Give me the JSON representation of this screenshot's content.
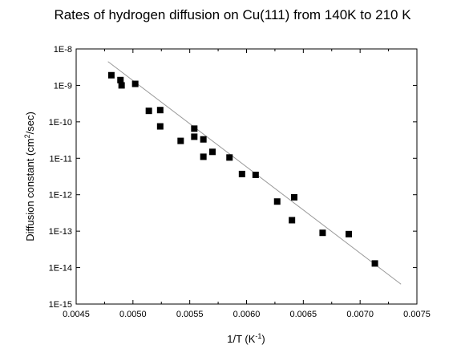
{
  "chart_data": {
    "type": "scatter",
    "title": "Rates of hydrogen diffusion on Cu(111) from 140K to 210 K",
    "xlabel": {
      "main": "1/T  (K",
      "sup": "-1",
      "end": ")"
    },
    "ylabel": {
      "main": "Diffusion constant  (cm",
      "sup": "2",
      "end": "/sec)"
    },
    "xlim": [
      0.0045,
      0.0075
    ],
    "ylim_log10": [
      -15,
      -8
    ],
    "yscale": "log",
    "x_ticks": [
      "0.0045",
      "0.0050",
      "0.0055",
      "0.0060",
      "0.0065",
      "0.0070",
      "0.0075"
    ],
    "y_ticks": [
      "1E-15",
      "1E-14",
      "1E-13",
      "1E-12",
      "1E-11",
      "1E-10",
      "1E-9",
      "1E-8"
    ],
    "series": [
      {
        "marker": "square",
        "color": "#000000",
        "points": [
          {
            "x": 0.00481,
            "y": 1.9e-09
          },
          {
            "x": 0.00489,
            "y": 1.4e-09
          },
          {
            "x": 0.0049,
            "y": 1e-09
          },
          {
            "x": 0.00502,
            "y": 1.1e-09
          },
          {
            "x": 0.00514,
            "y": 2e-10
          },
          {
            "x": 0.00524,
            "y": 2.1e-10
          },
          {
            "x": 0.00524,
            "y": 7.5e-11
          },
          {
            "x": 0.00542,
            "y": 3e-11
          },
          {
            "x": 0.00554,
            "y": 6.5e-11
          },
          {
            "x": 0.00554,
            "y": 3.9e-11
          },
          {
            "x": 0.00562,
            "y": 3.3e-11
          },
          {
            "x": 0.00562,
            "y": 1.1e-11
          },
          {
            "x": 0.0057,
            "y": 1.5e-11
          },
          {
            "x": 0.00585,
            "y": 1.05e-11
          },
          {
            "x": 0.00596,
            "y": 3.7e-12
          },
          {
            "x": 0.00608,
            "y": 3.5e-12
          },
          {
            "x": 0.00627,
            "y": 6.5e-13
          },
          {
            "x": 0.0064,
            "y": 2e-13
          },
          {
            "x": 0.00642,
            "y": 8.5e-13
          },
          {
            "x": 0.00667,
            "y": 9e-14
          },
          {
            "x": 0.0069,
            "y": 8.3e-14
          },
          {
            "x": 0.00713,
            "y": 1.3e-14
          }
        ]
      }
    ],
    "fit_line": {
      "color": "#999999",
      "points": [
        {
          "x": 0.00478,
          "y": 4.5e-09
        },
        {
          "x": 0.00736,
          "y": 3.5e-15
        }
      ]
    },
    "grid": false,
    "legend": "none"
  }
}
